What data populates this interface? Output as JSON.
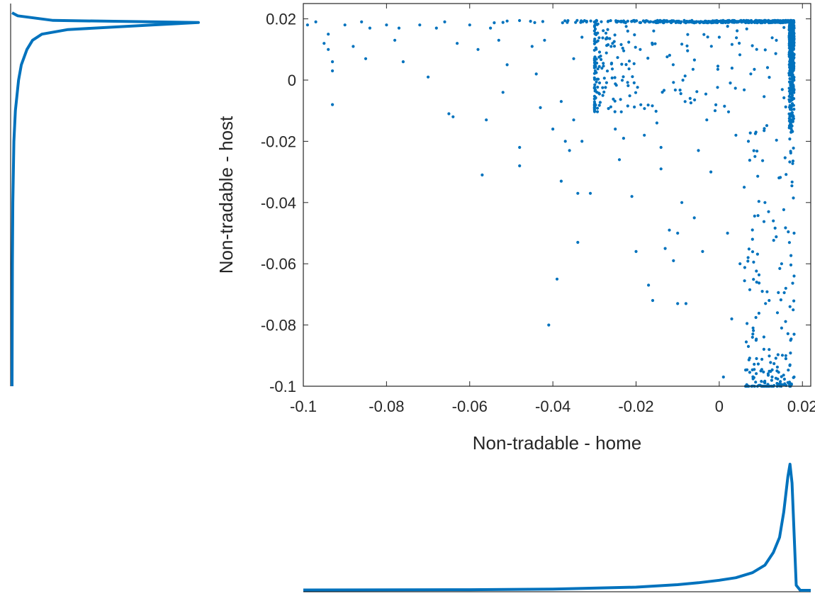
{
  "chart_data": [
    {
      "type": "scatter",
      "xlabel": "Non-tradable - home",
      "ylabel": "Non-tradable - host",
      "xlim": [
        -0.1,
        0.022
      ],
      "ylim": [
        -0.1,
        0.025
      ],
      "xticks": [
        "-0.1",
        "-0.08",
        "-0.06",
        "-0.04",
        "-0.02",
        "0",
        "0.02"
      ],
      "yticks": [
        "0.02",
        "0",
        "-0.02",
        "-0.04",
        "-0.06",
        "-0.08",
        "-0.1"
      ],
      "box": true,
      "grid": false,
      "color": "#0072bd",
      "x_upper_bound": 0.018,
      "y_upper_bound": 0.0195,
      "points": [
        [
          -0.099,
          0.018
        ],
        [
          -0.097,
          0.019
        ],
        [
          -0.095,
          0.012
        ],
        [
          -0.094,
          0.01
        ],
        [
          -0.094,
          0.015
        ],
        [
          -0.093,
          0.006
        ],
        [
          -0.093,
          0.003
        ],
        [
          -0.093,
          -0.008
        ],
        [
          -0.09,
          0.018
        ],
        [
          -0.088,
          0.011
        ],
        [
          -0.086,
          0.019
        ],
        [
          -0.085,
          0.007
        ],
        [
          -0.084,
          0.017
        ],
        [
          -0.08,
          0.018
        ],
        [
          -0.078,
          0.013
        ],
        [
          -0.077,
          0.017
        ],
        [
          -0.076,
          0.006
        ],
        [
          -0.072,
          0.018
        ],
        [
          -0.07,
          0.001
        ],
        [
          -0.068,
          0.017
        ],
        [
          -0.066,
          0.019
        ],
        [
          -0.065,
          -0.011
        ],
        [
          -0.064,
          -0.012
        ],
        [
          -0.063,
          0.012
        ],
        [
          -0.06,
          0.018
        ],
        [
          -0.058,
          0.01
        ],
        [
          -0.057,
          -0.031
        ],
        [
          -0.056,
          -0.013
        ],
        [
          -0.055,
          0.017
        ],
        [
          -0.053,
          0.013
        ],
        [
          -0.052,
          -0.004
        ],
        [
          -0.051,
          0.005
        ],
        [
          -0.048,
          -0.022
        ],
        [
          -0.048,
          -0.028
        ],
        [
          -0.045,
          0.011
        ],
        [
          -0.044,
          0.002
        ],
        [
          -0.043,
          -0.009
        ],
        [
          -0.042,
          0.013
        ],
        [
          -0.041,
          -0.08
        ],
        [
          -0.04,
          -0.016
        ],
        [
          -0.039,
          -0.065
        ],
        [
          -0.038,
          -0.007
        ],
        [
          -0.038,
          -0.033
        ],
        [
          -0.037,
          -0.02
        ],
        [
          -0.036,
          -0.023
        ],
        [
          -0.035,
          0.007
        ],
        [
          -0.035,
          -0.013
        ],
        [
          -0.034,
          -0.053
        ],
        [
          -0.034,
          -0.037
        ],
        [
          -0.033,
          -0.02
        ],
        [
          -0.033,
          0.014
        ],
        [
          -0.031,
          -0.037
        ],
        [
          -0.03,
          0.004
        ],
        [
          -0.028,
          -0.005
        ],
        [
          -0.026,
          0.011
        ],
        [
          -0.025,
          -0.016
        ],
        [
          -0.024,
          -0.026
        ],
        [
          -0.023,
          -0.019
        ],
        [
          -0.022,
          0.016
        ],
        [
          -0.021,
          -0.038
        ],
        [
          -0.02,
          -0.056
        ],
        [
          -0.019,
          0.01
        ],
        [
          -0.018,
          -0.018
        ],
        [
          -0.017,
          -0.067
        ],
        [
          -0.016,
          -0.072
        ],
        [
          -0.015,
          -0.014
        ],
        [
          -0.014,
          -0.022
        ],
        [
          -0.014,
          -0.029
        ],
        [
          -0.013,
          -0.055
        ],
        [
          -0.012,
          -0.049
        ],
        [
          -0.011,
          -0.059
        ],
        [
          -0.01,
          -0.073
        ],
        [
          -0.01,
          -0.05
        ],
        [
          -0.009,
          -0.04
        ],
        [
          -0.008,
          -0.073
        ],
        [
          -0.007,
          -0.006
        ],
        [
          -0.006,
          -0.045
        ],
        [
          -0.005,
          -0.023
        ],
        [
          -0.004,
          -0.056
        ],
        [
          -0.003,
          -0.013
        ],
        [
          -0.002,
          -0.03
        ],
        [
          -0.001,
          -0.01
        ],
        [
          0.0,
          0.014
        ],
        [
          0.001,
          -0.097
        ],
        [
          0.002,
          -0.05
        ],
        [
          0.003,
          -0.078
        ],
        [
          0.004,
          -0.018
        ],
        [
          0.005,
          -0.06
        ],
        [
          0.006,
          -0.035
        ],
        [
          0.007,
          -0.02
        ],
        [
          0.008,
          -0.084
        ],
        [
          0.008,
          -0.052
        ],
        [
          0.009,
          -0.066
        ],
        [
          0.01,
          -0.095
        ],
        [
          0.011,
          -0.04
        ],
        [
          0.012,
          -0.088
        ],
        [
          0.012,
          -0.072
        ],
        [
          0.013,
          -0.046
        ],
        [
          0.014,
          -0.076
        ],
        [
          0.015,
          -0.081
        ],
        [
          0.015,
          -0.06
        ],
        [
          0.016,
          -0.09
        ],
        [
          0.016,
          -0.068
        ],
        [
          0.017,
          -0.1
        ],
        [
          0.017,
          -0.093
        ],
        [
          0.017,
          -0.074
        ],
        [
          0.018,
          -0.083
        ],
        [
          0.018,
          -0.05
        ],
        [
          0.018,
          -0.097
        ],
        [
          0.018,
          -0.064
        ]
      ],
      "dense_region": {
        "x_range": [
          -0.03,
          0.018
        ],
        "y_range": [
          -0.1,
          0.0195
        ],
        "count": 2600,
        "x_skew": 0.28,
        "y_skew": 0.3,
        "seed": 7
      }
    },
    {
      "type": "line",
      "role": "marginal-density-x",
      "x": [
        -0.1,
        -0.06,
        -0.04,
        -0.02,
        -0.01,
        -0.005,
        0.0,
        0.004,
        0.008,
        0.011,
        0.013,
        0.0145,
        0.0155,
        0.0165,
        0.017,
        0.0175,
        0.0185,
        0.0195,
        0.022
      ],
      "y": [
        0.003,
        0.005,
        0.01,
        0.025,
        0.045,
        0.06,
        0.08,
        0.1,
        0.14,
        0.2,
        0.3,
        0.42,
        0.62,
        0.9,
        1.0,
        0.85,
        0.04,
        0.0,
        0.0
      ],
      "color": "#0072bd",
      "box": false
    },
    {
      "type": "line",
      "role": "marginal-density-y",
      "x": [
        -0.1,
        -0.06,
        -0.04,
        -0.02,
        -0.01,
        0.0,
        0.005,
        0.01,
        0.013,
        0.015,
        0.0165,
        0.018,
        0.0188,
        0.0195,
        0.021,
        0.022
      ],
      "y": [
        0.0,
        0.002,
        0.004,
        0.01,
        0.018,
        0.035,
        0.05,
        0.08,
        0.11,
        0.16,
        0.3,
        0.75,
        1.0,
        0.22,
        0.03,
        0.0
      ],
      "color": "#0072bd",
      "orientation": "vertical",
      "box": false
    }
  ]
}
